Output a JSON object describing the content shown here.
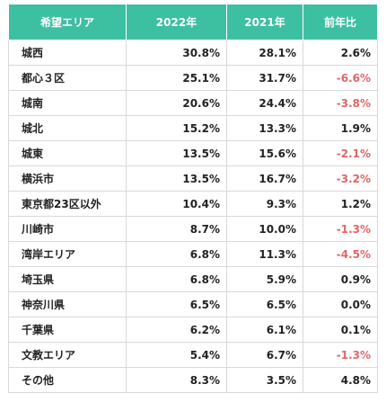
{
  "colors": {
    "header_bg": "#3dbfa2",
    "header_text": "#ffffff",
    "negative": "#e06666",
    "text": "#222222",
    "border": "#d9d9d9"
  },
  "table": {
    "headers": [
      "希望エリア",
      "2022年",
      "2021年",
      "前年比"
    ],
    "rows": [
      {
        "area": "城西",
        "y2022": "30.8%",
        "y2021": "28.1%",
        "yoy": "2.6%",
        "negative": false
      },
      {
        "area": "都心３区",
        "y2022": "25.1%",
        "y2021": "31.7%",
        "yoy": "-6.6%",
        "negative": true
      },
      {
        "area": "城南",
        "y2022": "20.6%",
        "y2021": "24.4%",
        "yoy": "-3.8%",
        "negative": true
      },
      {
        "area": "城北",
        "y2022": "15.2%",
        "y2021": "13.3%",
        "yoy": "1.9%",
        "negative": false
      },
      {
        "area": "城東",
        "y2022": "13.5%",
        "y2021": "15.6%",
        "yoy": "-2.1%",
        "negative": true
      },
      {
        "area": "横浜市",
        "y2022": "13.5%",
        "y2021": "16.7%",
        "yoy": "-3.2%",
        "negative": true
      },
      {
        "area": "東京都23区以外",
        "y2022": "10.4%",
        "y2021": "9.3%",
        "yoy": "1.2%",
        "negative": false
      },
      {
        "area": "川崎市",
        "y2022": "8.7%",
        "y2021": "10.0%",
        "yoy": "-1.3%",
        "negative": true
      },
      {
        "area": "湾岸エリア",
        "y2022": "6.8%",
        "y2021": "11.3%",
        "yoy": "-4.5%",
        "negative": true
      },
      {
        "area": "埼玉県",
        "y2022": "6.8%",
        "y2021": "5.9%",
        "yoy": "0.9%",
        "negative": false
      },
      {
        "area": "神奈川県",
        "y2022": "6.5%",
        "y2021": "6.5%",
        "yoy": "0.0%",
        "negative": false
      },
      {
        "area": "千葉県",
        "y2022": "6.2%",
        "y2021": "6.1%",
        "yoy": "0.1%",
        "negative": false
      },
      {
        "area": "文教エリア",
        "y2022": "5.4%",
        "y2021": "6.7%",
        "yoy": "-1.3%",
        "negative": true
      },
      {
        "area": "その他",
        "y2022": "8.3%",
        "y2021": "3.5%",
        "yoy": "4.8%",
        "negative": false
      }
    ]
  }
}
